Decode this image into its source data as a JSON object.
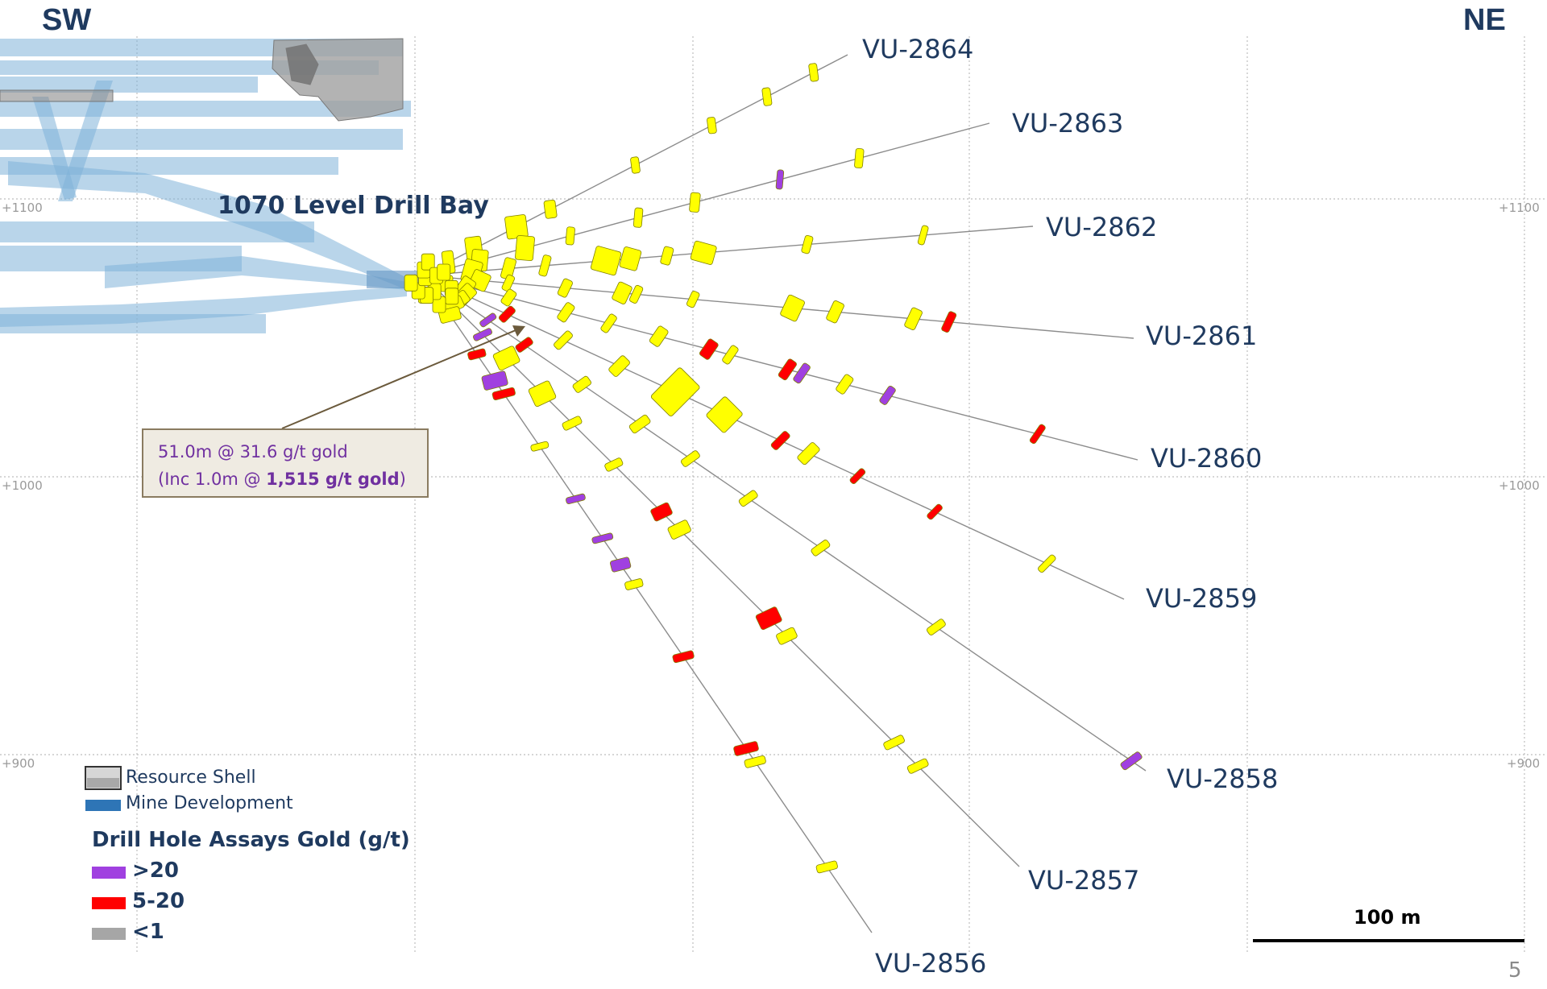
{
  "directions": {
    "sw": "SW",
    "ne": "NE"
  },
  "elevations": [
    "+1100",
    "+1000",
    "+900"
  ],
  "drill_bay_label": "1070 Level Drill Bay",
  "drill_holes": [
    "VU-2864",
    "VU-2863",
    "VU-2862",
    "VU-2861",
    "VU-2860",
    "VU-2859",
    "VU-2858",
    "VU-2857",
    "VU-2856"
  ],
  "callout": {
    "line1": "51.0m @ 31.6 g/t gold",
    "line2_prefix": "(Inc 1.0m @ ",
    "line2_bold": "1,515 g/t gold",
    "line2_suffix": ")"
  },
  "legend": {
    "resource_shell": "Resource Shell",
    "mine_development": "Mine Development",
    "assay_title": "Drill Hole Assays Gold (g/t)",
    "assays": [
      {
        "label": ">20",
        "color": "#a040e0"
      },
      {
        "label": "5-20",
        "color": "#ff0000"
      },
      {
        "label": "<1",
        "color": "#a6a6a6"
      }
    ]
  },
  "scale_bar": {
    "label": "100 m"
  },
  "page_number": "5",
  "colors": {
    "ore_intercept": "#ffff00",
    "mine_development": "#7fb2d8",
    "resource_shell": "#a0a0a0",
    "text_primary": "#1f3a5f"
  }
}
